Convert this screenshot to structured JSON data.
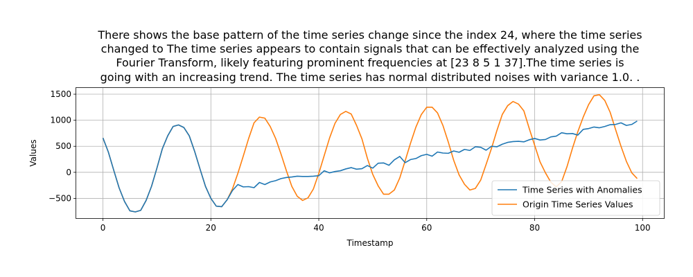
{
  "chart_data": {
    "type": "line",
    "title_lines": [
      "There shows the base pattern of the time series change since the index 24, where the time series",
      "changed to The time series appears to contain signals that can be effectively analyzed using the",
      "Fourier Transform, likely featuring prominent frequencies at [23  8  5  1 37].The time series is",
      "going with an increasing trend. The time series has normal distributed noises with variance 1.0. ."
    ],
    "xlabel": "Timestamp",
    "ylabel": "Values",
    "xlim": [
      -4.95,
      103.95
    ],
    "ylim": [
      -880,
      1620
    ],
    "xticks": [
      0,
      20,
      40,
      60,
      80,
      100
    ],
    "yticks": [
      -500,
      0,
      500,
      1000,
      1500
    ],
    "grid": true,
    "legend_position": "lower-right",
    "series": [
      {
        "name": "Time Series with Anomalies",
        "color": "#1f77b4",
        "x": [
          0,
          1,
          2,
          3,
          4,
          5,
          6,
          7,
          8,
          9,
          10,
          11,
          12,
          13,
          14,
          15,
          16,
          17,
          18,
          19,
          20,
          21,
          22,
          23,
          24,
          25,
          26,
          27,
          28,
          29,
          30,
          31,
          32,
          33,
          34,
          35,
          36,
          37,
          38,
          39,
          40,
          41,
          42,
          43,
          44,
          45,
          46,
          47,
          48,
          49,
          50,
          51,
          52,
          53,
          54,
          55,
          56,
          57,
          58,
          59,
          60,
          61,
          62,
          63,
          64,
          65,
          66,
          67,
          68,
          69,
          70,
          71,
          72,
          73,
          74,
          75,
          76,
          77,
          78,
          79,
          80,
          81,
          82,
          83,
          84,
          85,
          86,
          87,
          88,
          89,
          90,
          91,
          92,
          93,
          94,
          95,
          96,
          97,
          98,
          99
        ],
        "values": [
          660,
          390,
          40,
          -300,
          -560,
          -740,
          -760,
          -730,
          -540,
          -270,
          80,
          450,
          700,
          880,
          910,
          860,
          700,
          400,
          60,
          -270,
          -500,
          -650,
          -660,
          -530,
          -350,
          -235,
          -280,
          -275,
          -295,
          -195,
          -235,
          -185,
          -160,
          -120,
          -100,
          -90,
          -75,
          -80,
          -80,
          -75,
          -65,
          30,
          -10,
          15,
          30,
          65,
          90,
          60,
          70,
          130,
          80,
          175,
          180,
          135,
          240,
          305,
          185,
          245,
          265,
          320,
          345,
          310,
          390,
          370,
          365,
          410,
          385,
          440,
          420,
          490,
          480,
          425,
          500,
          490,
          540,
          575,
          590,
          595,
          585,
          625,
          650,
          620,
          630,
          680,
          695,
          760,
          740,
          745,
          715,
          825,
          840,
          870,
          855,
          880,
          915,
          920,
          950,
          900,
          920,
          985
        ]
      },
      {
        "name": "Origin Time Series Values",
        "color": "#ff7f0e",
        "x": [
          0,
          1,
          2,
          3,
          4,
          5,
          6,
          7,
          8,
          9,
          10,
          11,
          12,
          13,
          14,
          15,
          16,
          17,
          18,
          19,
          20,
          21,
          22,
          23,
          24,
          25,
          26,
          27,
          28,
          29,
          30,
          31,
          32,
          33,
          34,
          35,
          36,
          37,
          38,
          39,
          40,
          41,
          42,
          43,
          44,
          45,
          46,
          47,
          48,
          49,
          50,
          51,
          52,
          53,
          54,
          55,
          56,
          57,
          58,
          59,
          60,
          61,
          62,
          63,
          64,
          65,
          66,
          67,
          68,
          69,
          70,
          71,
          72,
          73,
          74,
          75,
          76,
          77,
          78,
          79,
          80,
          81,
          82,
          83,
          84,
          85,
          86,
          87,
          88,
          89,
          90,
          91,
          92,
          93,
          94,
          95,
          96,
          97,
          98,
          99
        ],
        "values": [
          660,
          390,
          40,
          -300,
          -560,
          -740,
          -760,
          -730,
          -540,
          -270,
          80,
          450,
          700,
          880,
          910,
          860,
          700,
          400,
          60,
          -270,
          -500,
          -650,
          -660,
          -530,
          -320,
          -20,
          310,
          650,
          950,
          1060,
          1040,
          880,
          650,
          350,
          30,
          -270,
          -460,
          -540,
          -490,
          -320,
          -20,
          320,
          660,
          940,
          1110,
          1170,
          1120,
          900,
          640,
          270,
          -40,
          -260,
          -420,
          -420,
          -340,
          -110,
          220,
          560,
          870,
          1110,
          1250,
          1250,
          1140,
          900,
          580,
          230,
          -50,
          -230,
          -340,
          -310,
          -150,
          150,
          460,
          800,
          1110,
          1280,
          1360,
          1310,
          1180,
          840,
          520,
          200,
          -10,
          -190,
          -280,
          -180,
          110,
          460,
          780,
          1060,
          1300,
          1470,
          1490,
          1380,
          1150,
          820,
          500,
          210,
          -10,
          -120
        ]
      }
    ]
  }
}
